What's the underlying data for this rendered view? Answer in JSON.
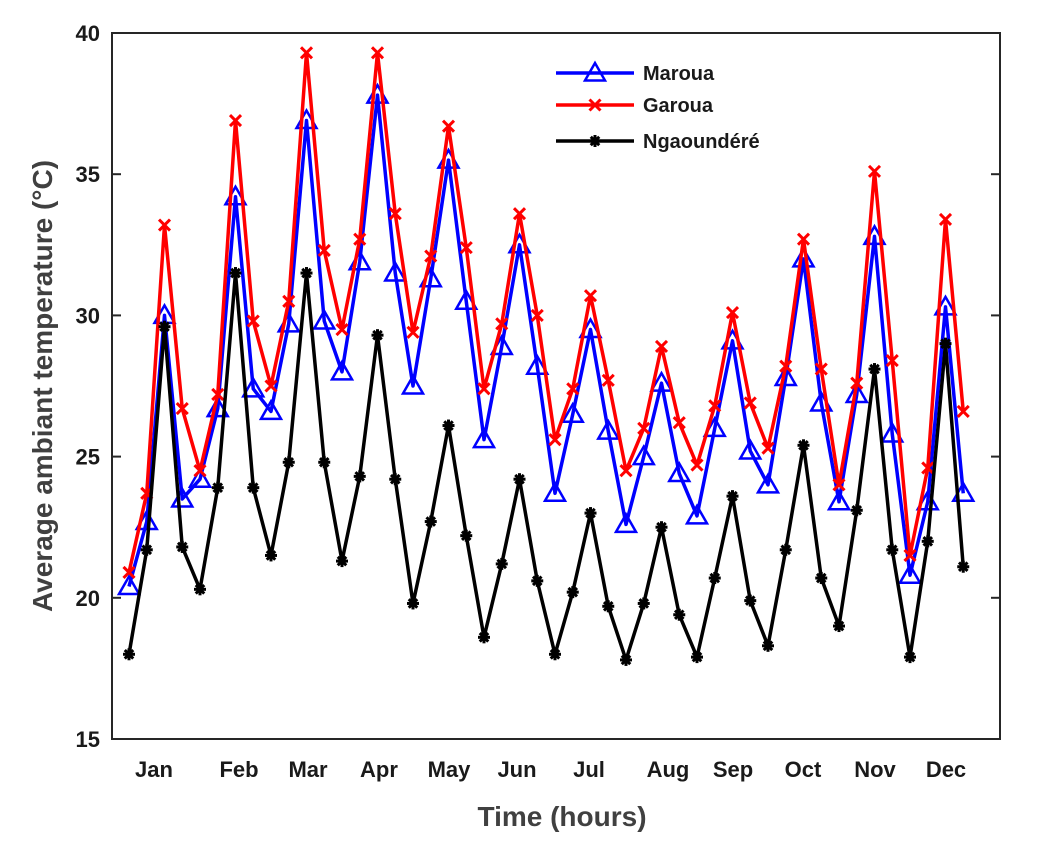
{
  "chart_data": {
    "type": "line",
    "title": "",
    "xlabel": "Time (hours)",
    "ylabel": "Average ambiant temperature  (°C)",
    "ylim": [
      15,
      40
    ],
    "yticks": [
      15,
      20,
      25,
      30,
      35,
      40
    ],
    "xlim": [
      0,
      48
    ],
    "grid": false,
    "legend_position": "top-right",
    "month_labels": [
      "Jan",
      "Feb",
      "Mar",
      "Apr",
      "May",
      "Jun",
      "Jul",
      "Aug",
      "Sep",
      "Oct",
      "Nov",
      "Dec"
    ],
    "x": [
      0,
      1,
      2,
      3,
      4,
      5,
      6,
      7,
      8,
      9,
      10,
      11,
      12,
      13,
      14,
      15,
      16,
      17,
      18,
      19,
      20,
      21,
      22,
      23,
      24,
      25,
      26,
      27,
      28,
      29,
      30,
      31,
      32,
      33,
      34,
      35,
      36,
      37,
      38,
      39,
      40,
      41,
      42,
      43,
      44,
      45,
      46,
      47
    ],
    "series": [
      {
        "name": "Maroua",
        "color": "#0000ff",
        "marker": "triangle",
        "values": [
          20.4,
          22.7,
          30.0,
          23.5,
          24.2,
          26.7,
          34.2,
          27.4,
          26.6,
          29.7,
          36.9,
          29.8,
          28.0,
          31.9,
          37.8,
          31.5,
          27.5,
          31.3,
          35.5,
          30.5,
          25.6,
          28.9,
          32.5,
          28.2,
          23.7,
          26.5,
          29.5,
          25.9,
          22.6,
          25.0,
          27.6,
          24.4,
          22.9,
          26.0,
          29.1,
          25.2,
          24.0,
          27.8,
          32.0,
          26.9,
          23.4,
          27.2,
          32.8,
          25.8,
          20.8,
          23.4,
          30.3,
          23.7
        ]
      },
      {
        "name": "Garoua",
        "color": "#ff0000",
        "marker": "x",
        "values": [
          20.9,
          23.7,
          33.2,
          26.7,
          24.5,
          27.2,
          36.9,
          29.8,
          27.5,
          30.5,
          39.3,
          32.3,
          29.5,
          32.7,
          39.3,
          33.6,
          29.4,
          32.1,
          36.7,
          32.4,
          27.4,
          29.7,
          33.6,
          30.0,
          25.6,
          27.4,
          30.7,
          27.7,
          24.5,
          26.0,
          28.9,
          26.2,
          24.7,
          26.8,
          30.1,
          26.9,
          25.3,
          28.2,
          32.7,
          28.1,
          24.0,
          27.6,
          35.1,
          28.4,
          21.5,
          24.6,
          33.4,
          26.6
        ]
      },
      {
        "name": "Ngaoundéré",
        "color": "#000000",
        "marker": "asterisk",
        "values": [
          18.0,
          21.7,
          29.6,
          21.8,
          20.3,
          23.9,
          31.5,
          23.9,
          21.5,
          24.8,
          31.5,
          24.8,
          21.3,
          24.3,
          29.3,
          24.2,
          19.8,
          22.7,
          26.1,
          22.2,
          18.6,
          21.2,
          24.2,
          20.6,
          18.0,
          20.2,
          23.0,
          19.7,
          17.8,
          19.8,
          22.5,
          19.4,
          17.9,
          20.7,
          23.6,
          19.9,
          18.3,
          21.7,
          25.4,
          20.7,
          19.0,
          23.1,
          28.1,
          21.7,
          17.9,
          22.0,
          29.0,
          21.1
        ]
      }
    ]
  }
}
